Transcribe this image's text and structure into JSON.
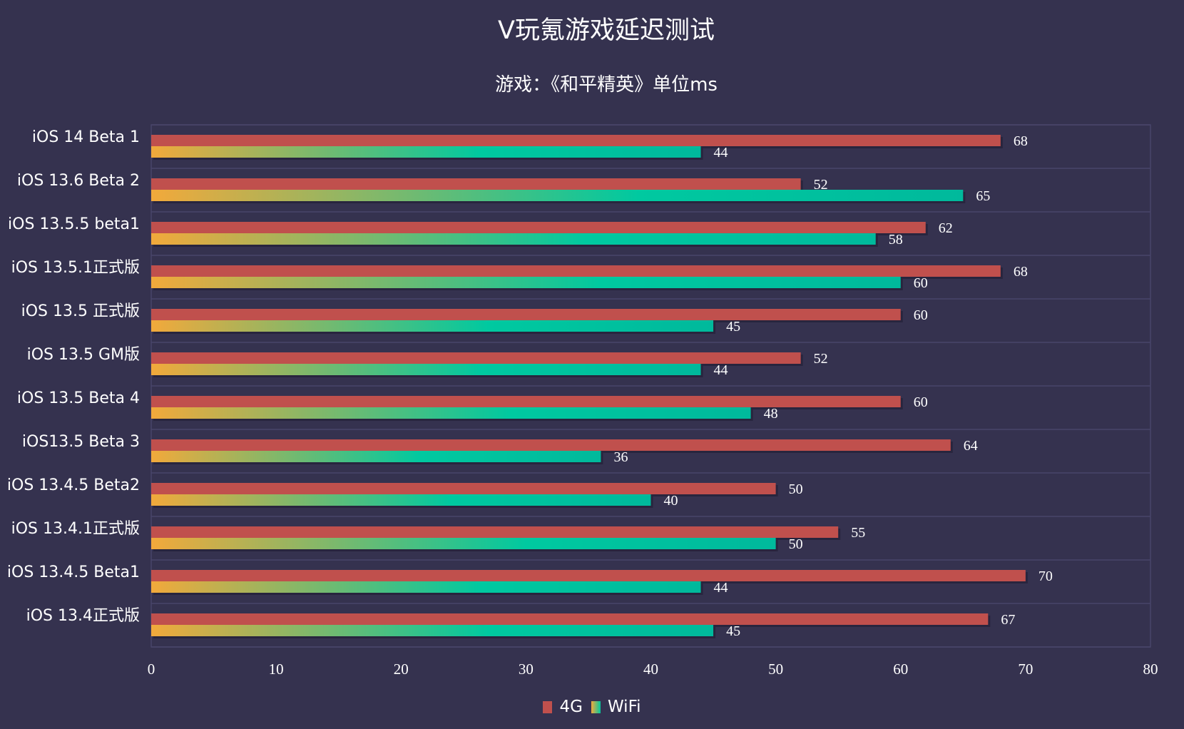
{
  "chart_data": {
    "type": "bar",
    "orientation": "horizontal",
    "title": "V玩氪游戏延迟测试",
    "subtitle": "游戏：《和平精英》单位ms",
    "categories": [
      "iOS 14 Beta 1",
      "iOS 13.6 Beta 2",
      "iOS 13.5.5 beta1",
      "iOS 13.5.1正式版",
      "iOS 13.5 正式版",
      "iOS 13.5 GM版",
      "iOS 13.5 Beta 4",
      "iOS13.5 Beta 3",
      "iOS 13.4.5 Beta2",
      "iOS 13.4.1正式版",
      "iOS 13.4.5 Beta1",
      "iOS 13.4正式版"
    ],
    "series": [
      {
        "name": "4G",
        "values": [
          68,
          52,
          62,
          68,
          60,
          52,
          60,
          64,
          50,
          55,
          70,
          67
        ],
        "color": "#c0504d"
      },
      {
        "name": "WiFi",
        "values": [
          44,
          65,
          58,
          60,
          45,
          44,
          48,
          36,
          40,
          50,
          44,
          45
        ],
        "color_start": "#f2a93b",
        "color_end": "#00c9a0"
      }
    ],
    "xlim": [
      0,
      80
    ],
    "xticks": [
      0,
      10,
      20,
      30,
      40,
      50,
      60,
      70,
      80
    ],
    "grid": true,
    "legend_position": "bottom",
    "background": "#35324f"
  }
}
